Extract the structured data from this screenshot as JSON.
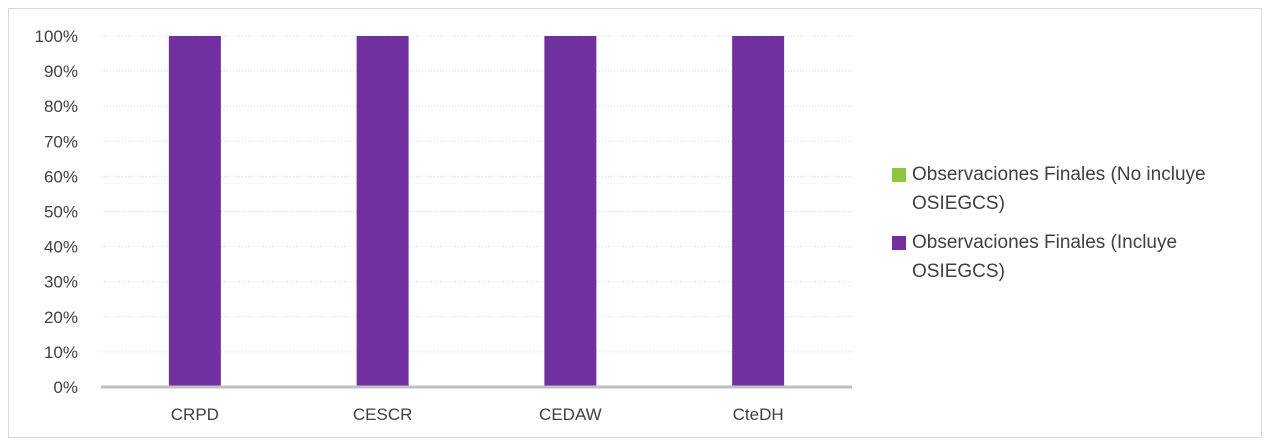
{
  "chart_data": {
    "type": "bar",
    "stacked": true,
    "percent": true,
    "categories": [
      "CRPD",
      "CESCR",
      "CEDAW",
      "CteDH"
    ],
    "series": [
      {
        "name": "Observaciones Finales (No incluye OSIEGCS)",
        "color": "#8dc63f",
        "values": [
          0,
          0,
          0,
          0
        ]
      },
      {
        "name": "Observaciones Finales (Incluye OSIEGCS)",
        "color": "#7030a0",
        "values": [
          100,
          100,
          100,
          100
        ]
      }
    ],
    "yticks": [
      "0%",
      "10%",
      "20%",
      "30%",
      "40%",
      "50%",
      "60%",
      "70%",
      "80%",
      "90%",
      "100%"
    ],
    "ylim": [
      0,
      100
    ],
    "grid": true,
    "legend_position": "right",
    "title": "",
    "xlabel": "",
    "ylabel": ""
  }
}
